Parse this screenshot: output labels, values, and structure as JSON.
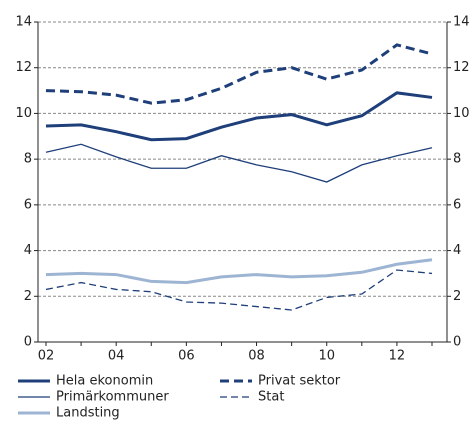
{
  "chart_data": {
    "type": "line",
    "categories": [
      "02",
      null,
      "04",
      null,
      "06",
      null,
      "08",
      null,
      "10",
      null,
      "12",
      null
    ],
    "series": [
      {
        "name": "Hela ekonomin",
        "color": "#1f3f7a",
        "linestyle": "solid",
        "linewidth": "thick",
        "values": [
          9.45,
          9.5,
          9.2,
          8.85,
          8.9,
          9.4,
          9.8,
          9.95,
          9.5,
          9.9,
          10.9,
          10.7
        ]
      },
      {
        "name": "Privat sektor",
        "color": "#1f3f7a",
        "linestyle": "dashed",
        "linewidth": "thick",
        "values": [
          11.0,
          10.95,
          10.8,
          10.45,
          10.6,
          11.1,
          11.8,
          12.0,
          11.5,
          11.9,
          13.0,
          12.6
        ]
      },
      {
        "name": "Primärkommuner",
        "color": "#1f3f7a",
        "linestyle": "solid",
        "linewidth": "thin",
        "values": [
          8.3,
          8.65,
          8.1,
          7.6,
          7.6,
          8.15,
          7.75,
          7.45,
          7.0,
          7.75,
          8.15,
          8.5
        ]
      },
      {
        "name": "Stat",
        "color": "#1f3f7a",
        "linestyle": "dashed",
        "linewidth": "thin",
        "values": [
          2.3,
          2.6,
          2.3,
          2.2,
          1.75,
          1.7,
          1.55,
          1.4,
          1.95,
          2.1,
          3.15,
          3.0
        ]
      },
      {
        "name": "Landsting",
        "color": "#9db5d3",
        "linestyle": "solid",
        "linewidth": "thick",
        "values": [
          2.95,
          3.0,
          2.95,
          2.65,
          2.6,
          2.85,
          2.95,
          2.85,
          2.9,
          3.05,
          3.4,
          3.6
        ]
      }
    ],
    "ylim": [
      0,
      14
    ],
    "yticks": [
      0,
      2,
      4,
      6,
      8,
      10,
      12,
      14
    ],
    "y2lim": [
      0,
      14
    ],
    "y2ticks": [
      0,
      2,
      4,
      6,
      8,
      10,
      12,
      14
    ],
    "grid": true
  }
}
